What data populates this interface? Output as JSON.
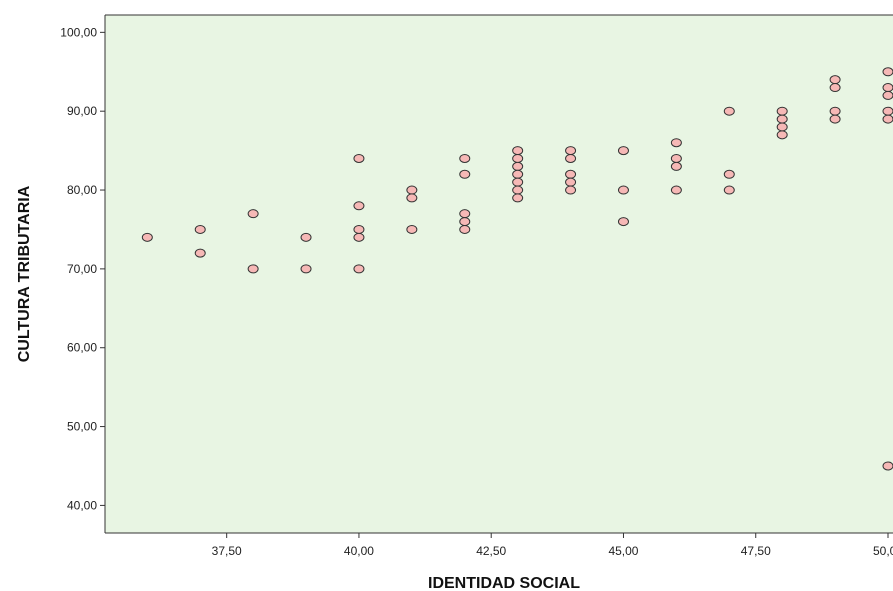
{
  "chart_data": {
    "type": "scatter",
    "xlabel": "IDENTIDAD SOCIAL",
    "ylabel": "CULTURA TRIBUTARIA",
    "xlim": [
      35.2,
      50.0
    ],
    "ylim": [
      36.5,
      102.2
    ],
    "x_ticks": [
      {
        "value": 37.5,
        "label": "37,50"
      },
      {
        "value": 40.0,
        "label": "40,00"
      },
      {
        "value": 42.5,
        "label": "42,50"
      },
      {
        "value": 45.0,
        "label": "45,00"
      },
      {
        "value": 47.5,
        "label": "47,50"
      },
      {
        "value": 50.0,
        "label": "50,00"
      }
    ],
    "y_ticks": [
      {
        "value": 40,
        "label": "40,00"
      },
      {
        "value": 50,
        "label": "50,00"
      },
      {
        "value": 60,
        "label": "60,00"
      },
      {
        "value": 70,
        "label": "70,00"
      },
      {
        "value": 80,
        "label": "80,00"
      },
      {
        "value": 90,
        "label": "90,00"
      },
      {
        "value": 100,
        "label": "100,00"
      }
    ],
    "grid": false,
    "colors": {
      "plot_background": "#e8f5e3",
      "marker_fill": "#f6b8b6",
      "marker_stroke": "#333333",
      "axis": "#333333"
    },
    "points": [
      {
        "x": 36,
        "y": 74
      },
      {
        "x": 37,
        "y": 75
      },
      {
        "x": 37,
        "y": 72
      },
      {
        "x": 38,
        "y": 77
      },
      {
        "x": 38,
        "y": 70
      },
      {
        "x": 39,
        "y": 74
      },
      {
        "x": 39,
        "y": 70
      },
      {
        "x": 40,
        "y": 84
      },
      {
        "x": 40,
        "y": 78
      },
      {
        "x": 40,
        "y": 75
      },
      {
        "x": 40,
        "y": 74
      },
      {
        "x": 40,
        "y": 70
      },
      {
        "x": 41,
        "y": 80
      },
      {
        "x": 41,
        "y": 79
      },
      {
        "x": 41,
        "y": 75
      },
      {
        "x": 42,
        "y": 84
      },
      {
        "x": 42,
        "y": 82
      },
      {
        "x": 42,
        "y": 77
      },
      {
        "x": 42,
        "y": 76
      },
      {
        "x": 42,
        "y": 75
      },
      {
        "x": 43,
        "y": 85
      },
      {
        "x": 43,
        "y": 84
      },
      {
        "x": 43,
        "y": 83
      },
      {
        "x": 43,
        "y": 82
      },
      {
        "x": 43,
        "y": 81
      },
      {
        "x": 43,
        "y": 80
      },
      {
        "x": 43,
        "y": 79
      },
      {
        "x": 44,
        "y": 85
      },
      {
        "x": 44,
        "y": 84
      },
      {
        "x": 44,
        "y": 82
      },
      {
        "x": 44,
        "y": 81
      },
      {
        "x": 44,
        "y": 80
      },
      {
        "x": 45,
        "y": 85
      },
      {
        "x": 45,
        "y": 80
      },
      {
        "x": 45,
        "y": 76
      },
      {
        "x": 46,
        "y": 86
      },
      {
        "x": 46,
        "y": 84
      },
      {
        "x": 46,
        "y": 83
      },
      {
        "x": 46,
        "y": 80
      },
      {
        "x": 47,
        "y": 90
      },
      {
        "x": 47,
        "y": 82
      },
      {
        "x": 47,
        "y": 80
      },
      {
        "x": 48,
        "y": 90
      },
      {
        "x": 48,
        "y": 89
      },
      {
        "x": 48,
        "y": 88
      },
      {
        "x": 48,
        "y": 87
      },
      {
        "x": 49,
        "y": 94
      },
      {
        "x": 49,
        "y": 93
      },
      {
        "x": 49,
        "y": 90
      },
      {
        "x": 49,
        "y": 89
      },
      {
        "x": 50,
        "y": 95
      },
      {
        "x": 50,
        "y": 93
      },
      {
        "x": 50,
        "y": 92
      },
      {
        "x": 50,
        "y": 90
      },
      {
        "x": 50,
        "y": 89
      },
      {
        "x": 50,
        "y": 45
      }
    ]
  }
}
